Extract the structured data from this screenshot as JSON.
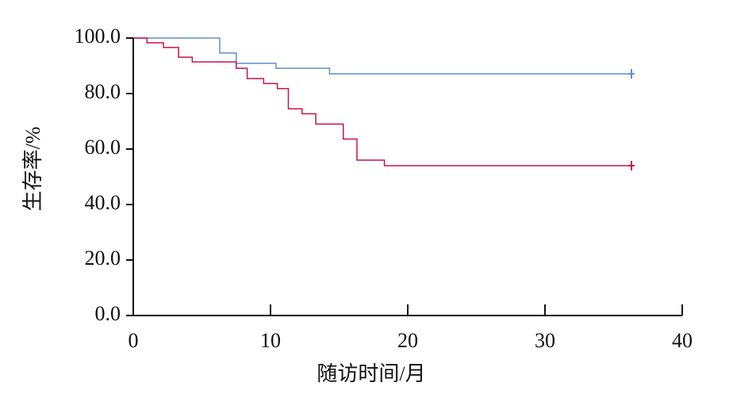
{
  "chart_data": {
    "type": "step",
    "x_label": "随访时间/月",
    "y_label": "生存率/%",
    "xlim": [
      0,
      40
    ],
    "xticks": [
      0,
      10,
      20,
      30,
      40
    ],
    "ylim": [
      0,
      100
    ],
    "yticks": [
      {
        "value": 0,
        "label": "0.0"
      },
      {
        "value": 20,
        "label": "20.0"
      },
      {
        "value": 40,
        "label": "40.0"
      },
      {
        "value": 60,
        "label": "60.0"
      },
      {
        "value": 80,
        "label": "80.0"
      },
      {
        "value": 100,
        "label": "100.0"
      }
    ],
    "censor_at_end": true,
    "series": [
      {
        "color": "#5b8fd0",
        "x": [
          0,
          6.3,
          7.5,
          10.4,
          14.3,
          36.3
        ],
        "values": [
          100,
          94.6,
          90.9,
          89.1,
          87.1,
          87.1
        ]
      },
      {
        "color": "#c8144a",
        "x": [
          0,
          1.0,
          2.2,
          3.3,
          4.3,
          7.5,
          8.3,
          9.5,
          10.5,
          11.3,
          12.3,
          13.3,
          15.3,
          16.3,
          18.3,
          36.3
        ],
        "values": [
          100,
          98.3,
          96.6,
          93.1,
          91.4,
          89.1,
          85.4,
          83.6,
          81.8,
          74.5,
          72.7,
          69.0,
          63.6,
          56.0,
          54.0,
          54.0
        ]
      }
    ]
  }
}
